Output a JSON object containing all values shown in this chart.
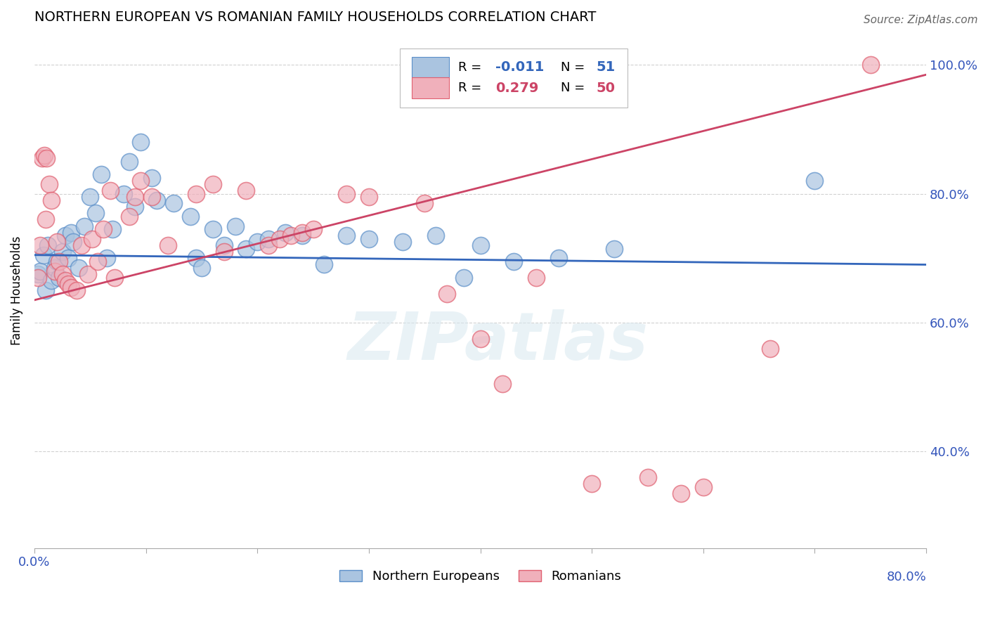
{
  "title": "NORTHERN EUROPEAN VS ROMANIAN FAMILY HOUSEHOLDS CORRELATION CHART",
  "source": "Source: ZipAtlas.com",
  "ylabel": "Family Households",
  "watermark": "ZIPatlas",
  "blue_color": "#aac4e0",
  "pink_color": "#f0b0bb",
  "blue_edge_color": "#5b8fc9",
  "pink_edge_color": "#e06070",
  "blue_line_color": "#3366bb",
  "pink_line_color": "#cc4466",
  "blue_scatter": [
    [
      0.3,
      67.5
    ],
    [
      0.5,
      68.0
    ],
    [
      0.8,
      70.5
    ],
    [
      1.0,
      65.0
    ],
    [
      1.2,
      72.0
    ],
    [
      1.5,
      66.5
    ],
    [
      1.8,
      68.5
    ],
    [
      2.0,
      69.5
    ],
    [
      2.2,
      67.0
    ],
    [
      2.5,
      71.0
    ],
    [
      2.8,
      73.5
    ],
    [
      3.0,
      70.0
    ],
    [
      3.3,
      74.0
    ],
    [
      3.5,
      72.5
    ],
    [
      4.0,
      68.5
    ],
    [
      4.5,
      75.0
    ],
    [
      5.0,
      79.5
    ],
    [
      5.5,
      77.0
    ],
    [
      6.0,
      83.0
    ],
    [
      6.5,
      70.0
    ],
    [
      7.0,
      74.5
    ],
    [
      8.0,
      80.0
    ],
    [
      8.5,
      85.0
    ],
    [
      9.0,
      78.0
    ],
    [
      9.5,
      88.0
    ],
    [
      10.5,
      82.5
    ],
    [
      11.0,
      79.0
    ],
    [
      12.5,
      78.5
    ],
    [
      14.0,
      76.5
    ],
    [
      14.5,
      70.0
    ],
    [
      15.0,
      68.5
    ],
    [
      16.0,
      74.5
    ],
    [
      17.0,
      72.0
    ],
    [
      18.0,
      75.0
    ],
    [
      19.0,
      71.5
    ],
    [
      20.0,
      72.5
    ],
    [
      21.0,
      73.0
    ],
    [
      22.5,
      74.0
    ],
    [
      24.0,
      73.5
    ],
    [
      26.0,
      69.0
    ],
    [
      28.0,
      73.5
    ],
    [
      30.0,
      73.0
    ],
    [
      33.0,
      72.5
    ],
    [
      36.0,
      73.5
    ],
    [
      38.5,
      67.0
    ],
    [
      40.0,
      72.0
    ],
    [
      43.0,
      69.5
    ],
    [
      47.0,
      70.0
    ],
    [
      52.0,
      71.5
    ],
    [
      70.0,
      82.0
    ]
  ],
  "pink_scatter": [
    [
      0.3,
      67.0
    ],
    [
      0.5,
      72.0
    ],
    [
      0.7,
      85.5
    ],
    [
      0.9,
      86.0
    ],
    [
      1.0,
      76.0
    ],
    [
      1.1,
      85.5
    ],
    [
      1.3,
      81.5
    ],
    [
      1.5,
      79.0
    ],
    [
      1.8,
      68.0
    ],
    [
      2.0,
      72.5
    ],
    [
      2.2,
      69.5
    ],
    [
      2.5,
      67.5
    ],
    [
      2.8,
      66.5
    ],
    [
      3.0,
      66.0
    ],
    [
      3.3,
      65.5
    ],
    [
      3.8,
      65.0
    ],
    [
      4.2,
      72.0
    ],
    [
      4.8,
      67.5
    ],
    [
      5.2,
      73.0
    ],
    [
      5.7,
      69.5
    ],
    [
      6.2,
      74.5
    ],
    [
      6.8,
      80.5
    ],
    [
      7.2,
      67.0
    ],
    [
      8.5,
      76.5
    ],
    [
      9.0,
      79.5
    ],
    [
      9.5,
      82.0
    ],
    [
      10.5,
      79.5
    ],
    [
      12.0,
      72.0
    ],
    [
      14.5,
      80.0
    ],
    [
      16.0,
      81.5
    ],
    [
      17.0,
      71.0
    ],
    [
      19.0,
      80.5
    ],
    [
      21.0,
      72.0
    ],
    [
      22.0,
      73.0
    ],
    [
      23.0,
      73.5
    ],
    [
      24.0,
      74.0
    ],
    [
      25.0,
      74.5
    ],
    [
      28.0,
      80.0
    ],
    [
      30.0,
      79.5
    ],
    [
      35.0,
      78.5
    ],
    [
      37.0,
      64.5
    ],
    [
      40.0,
      57.5
    ],
    [
      42.0,
      50.5
    ],
    [
      45.0,
      67.0
    ],
    [
      50.0,
      35.0
    ],
    [
      55.0,
      36.0
    ],
    [
      58.0,
      33.5
    ],
    [
      60.0,
      34.5
    ],
    [
      66.0,
      56.0
    ],
    [
      75.0,
      100.0
    ]
  ],
  "xlim": [
    0.0,
    80.0
  ],
  "ylim": [
    25.0,
    105.0
  ],
  "yticks": [
    40.0,
    60.0,
    80.0,
    100.0
  ],
  "xticks": [
    0.0,
    10.0,
    20.0,
    30.0,
    40.0,
    50.0,
    60.0,
    70.0,
    80.0
  ],
  "blue_trend_x": [
    0.0,
    80.0
  ],
  "blue_trend_y": [
    70.5,
    69.0
  ],
  "pink_trend_x": [
    0.0,
    80.0
  ],
  "pink_trend_y": [
    63.5,
    98.5
  ]
}
